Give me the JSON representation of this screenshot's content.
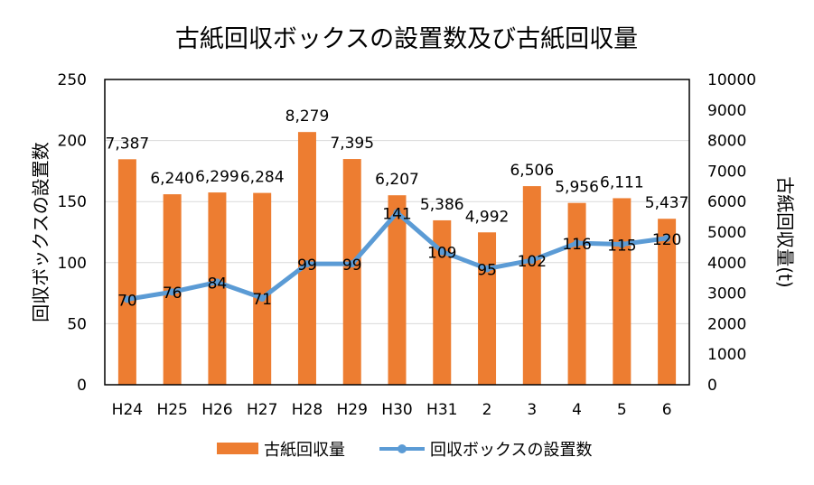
{
  "chart_data": {
    "type": "bar+line",
    "title": "古紙回収ボックスの設置数及び古紙回収量",
    "categories": [
      "H24",
      "H25",
      "H26",
      "H27",
      "H28",
      "H29",
      "H30",
      "H31",
      "2",
      "3",
      "4",
      "5",
      "6"
    ],
    "series": [
      {
        "name": "古紙回収量",
        "type": "bar",
        "axis": "right",
        "values": [
          7387,
          6240,
          6299,
          6284,
          8279,
          7395,
          6207,
          5386,
          4992,
          6506,
          5956,
          6111,
          5437
        ],
        "labels": [
          "7,387",
          "6,240",
          "6,299",
          "6,284",
          "8,279",
          "7,395",
          "6,207",
          "5,386",
          "4,992",
          "6,506",
          "5,956",
          "6,111",
          "5,437"
        ],
        "color": "#ED7D31"
      },
      {
        "name": "回収ボックスの設置数",
        "type": "line",
        "axis": "left",
        "values": [
          70,
          76,
          84,
          71,
          99,
          99,
          141,
          109,
          95,
          102,
          116,
          115,
          120
        ],
        "color": "#5B9BD5"
      }
    ],
    "ylabel": "回収ボックスの設置数",
    "y2label": "古紙回収量(t)",
    "ylim": [
      0,
      250
    ],
    "y2lim": [
      0,
      10000
    ],
    "yticks": [
      0,
      50,
      100,
      150,
      200,
      250
    ],
    "y2ticks": [
      0,
      1000,
      2000,
      3000,
      4000,
      5000,
      6000,
      7000,
      8000,
      9000,
      10000
    ],
    "grid": true,
    "legend": "bottom"
  }
}
